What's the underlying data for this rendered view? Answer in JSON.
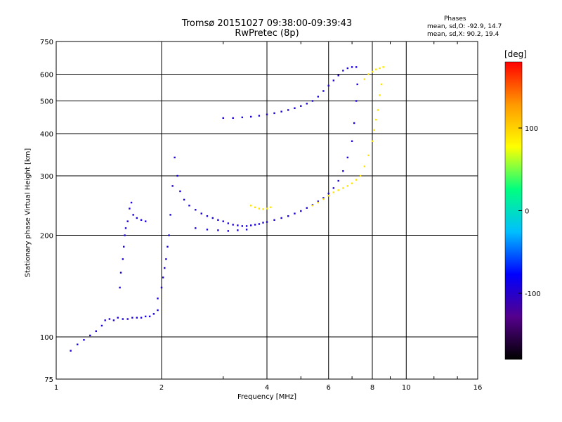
{
  "title": {
    "line1": "Tromsø 20151027 09:38:00-09:39:43",
    "line2": "RwPretec (8p)"
  },
  "phases": {
    "heading": "Phases",
    "o_line": "mean, sd,O: -92.9, 14.7",
    "x_line": "mean, sd,X:  90.2, 19.4"
  },
  "chart_data": {
    "type": "scatter",
    "xlabel": "Frequency [MHz]",
    "ylabel": "Stationary phase Virtual Height [km]",
    "x_scale": "log",
    "y_scale": "log",
    "xlim": [
      1,
      16
    ],
    "ylim": [
      75,
      750
    ],
    "x_ticks": [
      1,
      2,
      4,
      6,
      8,
      10,
      16
    ],
    "y_ticks": [
      75,
      100,
      200,
      300,
      400,
      500,
      600,
      750
    ],
    "grid": true,
    "colorbar": {
      "label": "[deg]",
      "range": [
        -180,
        180
      ],
      "ticks": [
        -100,
        0,
        100
      ],
      "colors": [
        "#000000",
        "#55008c",
        "#0000ff",
        "#00bfff",
        "#00ff80",
        "#ffff00",
        "#ff9900",
        "#ff0000"
      ]
    },
    "o_trace": {
      "phase_deg": -92.9,
      "points": [
        [
          1.1,
          91
        ],
        [
          1.15,
          95
        ],
        [
          1.2,
          98
        ],
        [
          1.25,
          101
        ],
        [
          1.3,
          104
        ],
        [
          1.35,
          108
        ],
        [
          1.38,
          112
        ],
        [
          1.42,
          113
        ],
        [
          1.46,
          112
        ],
        [
          1.5,
          114
        ],
        [
          1.55,
          113
        ],
        [
          1.6,
          113
        ],
        [
          1.65,
          114
        ],
        [
          1.7,
          114
        ],
        [
          1.75,
          114
        ],
        [
          1.8,
          115
        ],
        [
          1.85,
          115
        ],
        [
          1.9,
          117
        ],
        [
          1.95,
          120
        ],
        [
          1.52,
          140
        ],
        [
          1.53,
          155
        ],
        [
          1.55,
          170
        ],
        [
          1.56,
          185
        ],
        [
          1.57,
          200
        ],
        [
          1.58,
          210
        ],
        [
          1.6,
          220
        ],
        [
          1.62,
          240
        ],
        [
          1.64,
          250
        ],
        [
          1.66,
          230
        ],
        [
          1.7,
          225
        ],
        [
          1.75,
          222
        ],
        [
          1.8,
          220
        ],
        [
          1.95,
          130
        ],
        [
          2.0,
          140
        ],
        [
          2.02,
          150
        ],
        [
          2.04,
          160
        ],
        [
          2.06,
          170
        ],
        [
          2.08,
          185
        ],
        [
          2.1,
          200
        ],
        [
          2.12,
          230
        ],
        [
          2.15,
          280
        ],
        [
          2.18,
          340
        ],
        [
          2.22,
          300
        ],
        [
          2.26,
          270
        ],
        [
          2.32,
          255
        ],
        [
          2.4,
          245
        ],
        [
          2.5,
          238
        ],
        [
          2.6,
          232
        ],
        [
          2.7,
          228
        ],
        [
          2.8,
          225
        ],
        [
          2.9,
          222
        ],
        [
          3.0,
          220
        ],
        [
          3.1,
          217
        ],
        [
          3.2,
          215
        ],
        [
          3.3,
          214
        ],
        [
          3.4,
          213
        ],
        [
          3.5,
          213
        ],
        [
          3.6,
          214
        ],
        [
          3.7,
          215
        ],
        [
          3.8,
          216
        ],
        [
          3.9,
          218
        ],
        [
          4.0,
          219
        ],
        [
          4.2,
          222
        ],
        [
          4.4,
          225
        ],
        [
          4.6,
          228
        ],
        [
          4.8,
          232
        ],
        [
          5.0,
          236
        ],
        [
          5.2,
          241
        ],
        [
          5.4,
          246
        ],
        [
          5.6,
          252
        ],
        [
          5.8,
          258
        ],
        [
          6.0,
          266
        ],
        [
          6.2,
          276
        ],
        [
          6.4,
          290
        ],
        [
          6.6,
          310
        ],
        [
          6.8,
          340
        ],
        [
          7.0,
          380
        ],
        [
          7.1,
          430
        ],
        [
          7.2,
          500
        ],
        [
          7.25,
          560
        ],
        [
          3.0,
          445
        ],
        [
          3.2,
          445
        ],
        [
          3.4,
          447
        ],
        [
          3.6,
          449
        ],
        [
          3.8,
          452
        ],
        [
          4.0,
          456
        ],
        [
          4.2,
          460
        ],
        [
          4.4,
          465
        ],
        [
          4.6,
          470
        ],
        [
          4.8,
          476
        ],
        [
          5.0,
          483
        ],
        [
          5.2,
          491
        ],
        [
          5.4,
          500
        ],
        [
          5.6,
          515
        ],
        [
          5.8,
          535
        ],
        [
          6.0,
          555
        ],
        [
          6.2,
          575
        ],
        [
          6.4,
          595
        ],
        [
          6.6,
          615
        ],
        [
          6.8,
          625
        ],
        [
          7.0,
          630
        ],
        [
          7.2,
          630
        ],
        [
          2.5,
          210
        ],
        [
          2.7,
          208
        ],
        [
          2.9,
          207
        ],
        [
          3.1,
          206
        ],
        [
          3.3,
          207
        ],
        [
          3.5,
          208
        ]
      ]
    },
    "x_trace": {
      "phase_deg": 90.2,
      "points": [
        [
          3.6,
          245
        ],
        [
          3.7,
          242
        ],
        [
          3.8,
          240
        ],
        [
          3.9,
          239
        ],
        [
          4.0,
          240
        ],
        [
          4.1,
          242
        ],
        [
          5.4,
          245
        ],
        [
          5.6,
          250
        ],
        [
          5.8,
          256
        ],
        [
          6.0,
          262
        ],
        [
          6.2,
          268
        ],
        [
          6.4,
          272
        ],
        [
          6.6,
          276
        ],
        [
          6.8,
          280
        ],
        [
          7.0,
          285
        ],
        [
          7.2,
          292
        ],
        [
          7.4,
          300
        ],
        [
          7.6,
          320
        ],
        [
          7.8,
          345
        ],
        [
          8.0,
          380
        ],
        [
          8.1,
          410
        ],
        [
          8.2,
          440
        ],
        [
          8.3,
          470
        ],
        [
          8.4,
          520
        ],
        [
          8.5,
          560
        ],
        [
          7.6,
          580
        ],
        [
          7.8,
          600
        ],
        [
          8.0,
          610
        ],
        [
          8.2,
          620
        ],
        [
          8.4,
          625
        ],
        [
          8.6,
          630
        ]
      ]
    }
  }
}
